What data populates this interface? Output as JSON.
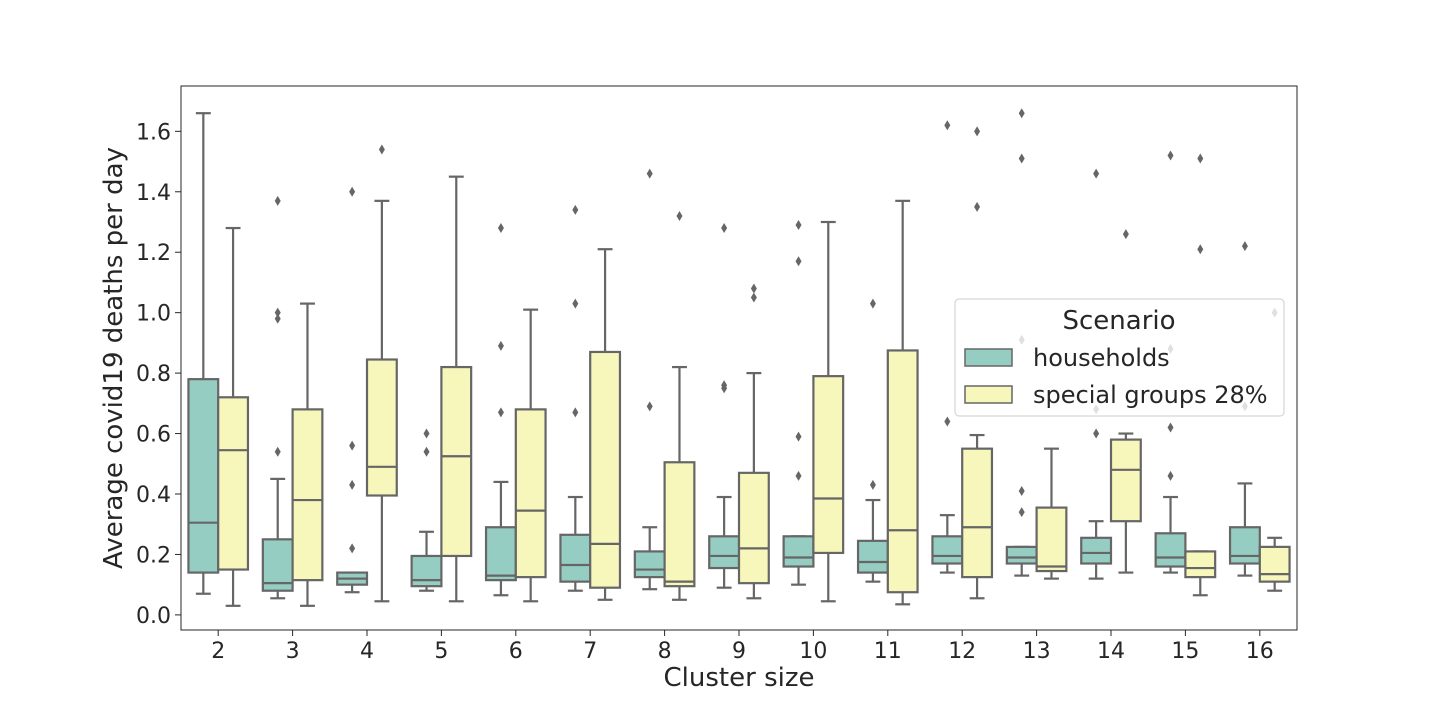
{
  "chart_data": {
    "type": "box",
    "title": "",
    "xlabel": "Cluster size",
    "ylabel": "Average covid19 deaths per day",
    "ylim": [
      -0.05,
      1.75
    ],
    "yticks": [
      "0.0",
      "0.2",
      "0.4",
      "0.6",
      "0.8",
      "1.0",
      "1.2",
      "1.4",
      "1.6"
    ],
    "categories": [
      "2",
      "3",
      "4",
      "5",
      "6",
      "7",
      "8",
      "9",
      "10",
      "11",
      "12",
      "13",
      "14",
      "15",
      "16"
    ],
    "grid": false,
    "legend": {
      "title": "Scenario",
      "placement": "center-right",
      "entries": [
        "households",
        "special groups 28%"
      ]
    },
    "colors": {
      "households": "#96cdc2",
      "special_groups": "#f7f7bb",
      "edge": "#666666",
      "text": "#262626"
    },
    "series": [
      {
        "name": "households",
        "boxes": [
          {
            "whislo": 0.07,
            "q1": 0.14,
            "med": 0.305,
            "q3": 0.78,
            "whishi": 1.66,
            "fliers": []
          },
          {
            "whislo": 0.055,
            "q1": 0.08,
            "med": 0.105,
            "q3": 0.25,
            "whishi": 0.45,
            "fliers": [
              0.54,
              0.98,
              1.0,
              1.37
            ]
          },
          {
            "whislo": 0.075,
            "q1": 0.1,
            "med": 0.12,
            "q3": 0.14,
            "whishi": 0.14,
            "fliers": [
              0.22,
              0.43,
              0.56,
              1.4
            ]
          },
          {
            "whislo": 0.08,
            "q1": 0.095,
            "med": 0.115,
            "q3": 0.195,
            "whishi": 0.275,
            "fliers": [
              0.54,
              0.6
            ]
          },
          {
            "whislo": 0.065,
            "q1": 0.115,
            "med": 0.13,
            "q3": 0.29,
            "whishi": 0.44,
            "fliers": [
              0.67,
              0.89,
              1.28
            ]
          },
          {
            "whislo": 0.08,
            "q1": 0.11,
            "med": 0.165,
            "q3": 0.265,
            "whishi": 0.39,
            "fliers": [
              0.67,
              1.03,
              1.34
            ]
          },
          {
            "whislo": 0.085,
            "q1": 0.125,
            "med": 0.15,
            "q3": 0.21,
            "whishi": 0.29,
            "fliers": [
              0.69,
              1.46
            ]
          },
          {
            "whislo": 0.09,
            "q1": 0.155,
            "med": 0.195,
            "q3": 0.26,
            "whishi": 0.39,
            "fliers": [
              0.75,
              0.76,
              1.28
            ]
          },
          {
            "whislo": 0.1,
            "q1": 0.16,
            "med": 0.19,
            "q3": 0.26,
            "whishi": 0.26,
            "fliers": [
              0.46,
              0.59,
              1.17,
              1.29
            ]
          },
          {
            "whislo": 0.11,
            "q1": 0.14,
            "med": 0.175,
            "q3": 0.245,
            "whishi": 0.38,
            "fliers": [
              0.43,
              1.03
            ]
          },
          {
            "whislo": 0.14,
            "q1": 0.17,
            "med": 0.195,
            "q3": 0.26,
            "whishi": 0.33,
            "fliers": [
              0.64,
              1.62
            ]
          },
          {
            "whislo": 0.13,
            "q1": 0.17,
            "med": 0.19,
            "q3": 0.225,
            "whishi": 0.225,
            "fliers": [
              0.34,
              0.41,
              0.91,
              1.51,
              1.66
            ]
          },
          {
            "whislo": 0.12,
            "q1": 0.17,
            "med": 0.205,
            "q3": 0.255,
            "whishi": 0.31,
            "fliers": [
              0.6,
              0.68,
              1.46
            ]
          },
          {
            "whislo": 0.14,
            "q1": 0.16,
            "med": 0.19,
            "q3": 0.27,
            "whishi": 0.39,
            "fliers": [
              0.46,
              0.62,
              0.88,
              1.52
            ]
          },
          {
            "whislo": 0.13,
            "q1": 0.17,
            "med": 0.195,
            "q3": 0.29,
            "whishi": 0.435,
            "fliers": [
              0.69,
              1.22
            ]
          }
        ]
      },
      {
        "name": "special groups 28%",
        "boxes": [
          {
            "whislo": 0.03,
            "q1": 0.15,
            "med": 0.545,
            "q3": 0.72,
            "whishi": 1.28,
            "fliers": []
          },
          {
            "whislo": 0.03,
            "q1": 0.115,
            "med": 0.38,
            "q3": 0.68,
            "whishi": 1.03,
            "fliers": []
          },
          {
            "whislo": 0.045,
            "q1": 0.395,
            "med": 0.49,
            "q3": 0.845,
            "whishi": 1.37,
            "fliers": [
              1.54
            ]
          },
          {
            "whislo": 0.045,
            "q1": 0.195,
            "med": 0.525,
            "q3": 0.82,
            "whishi": 1.45,
            "fliers": []
          },
          {
            "whislo": 0.045,
            "q1": 0.125,
            "med": 0.345,
            "q3": 0.68,
            "whishi": 1.01,
            "fliers": []
          },
          {
            "whislo": 0.05,
            "q1": 0.09,
            "med": 0.235,
            "q3": 0.87,
            "whishi": 1.21,
            "fliers": []
          },
          {
            "whislo": 0.05,
            "q1": 0.095,
            "med": 0.11,
            "q3": 0.505,
            "whishi": 0.82,
            "fliers": [
              1.32
            ]
          },
          {
            "whislo": 0.055,
            "q1": 0.105,
            "med": 0.22,
            "q3": 0.47,
            "whishi": 0.8,
            "fliers": [
              1.05,
              1.08
            ]
          },
          {
            "whislo": 0.045,
            "q1": 0.205,
            "med": 0.385,
            "q3": 0.79,
            "whishi": 1.3,
            "fliers": []
          },
          {
            "whislo": 0.035,
            "q1": 0.075,
            "med": 0.28,
            "q3": 0.875,
            "whishi": 1.37,
            "fliers": []
          },
          {
            "whislo": 0.055,
            "q1": 0.125,
            "med": 0.29,
            "q3": 0.55,
            "whishi": 0.595,
            "fliers": [
              1.35,
              1.6
            ]
          },
          {
            "whislo": 0.12,
            "q1": 0.145,
            "med": 0.16,
            "q3": 0.355,
            "whishi": 0.55,
            "fliers": []
          },
          {
            "whislo": 0.14,
            "q1": 0.31,
            "med": 0.48,
            "q3": 0.58,
            "whishi": 0.6,
            "fliers": [
              1.26
            ]
          },
          {
            "whislo": 0.065,
            "q1": 0.125,
            "med": 0.155,
            "q3": 0.21,
            "whishi": 0.21,
            "fliers": [
              1.21,
              1.51
            ]
          },
          {
            "whislo": 0.08,
            "q1": 0.11,
            "med": 0.135,
            "q3": 0.225,
            "whishi": 0.255,
            "fliers": [
              1.0
            ]
          }
        ]
      }
    ]
  }
}
